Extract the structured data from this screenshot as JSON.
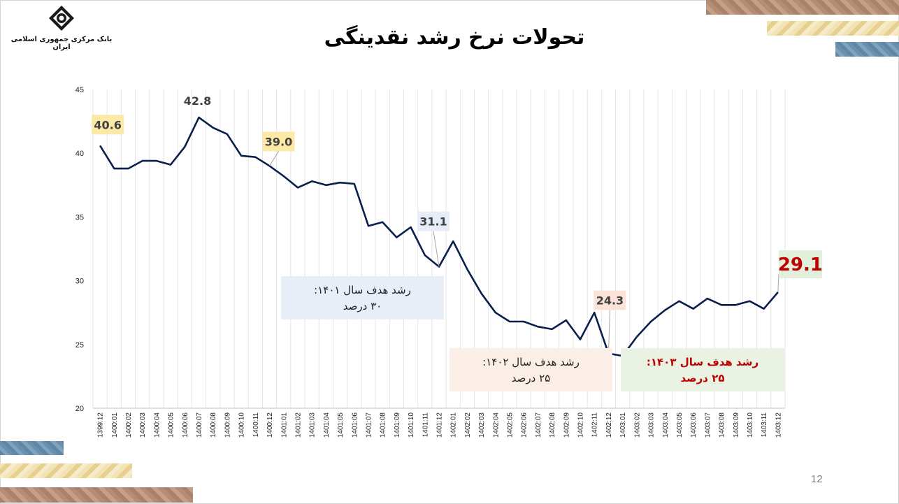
{
  "header": {
    "bank_name": "بانک مرکزی جمهوری اسلامی ایران",
    "title": "تحولات نرخ رشد نقدینگی",
    "logo_icon": "central-bank-logo-icon"
  },
  "footer": {
    "page_number": "12"
  },
  "chart_data": {
    "type": "line",
    "title": "تحولات نرخ رشد نقدینگی",
    "xlabel": "",
    "ylabel": "",
    "ylim": [
      20,
      45
    ],
    "yticks": [
      "20",
      "25",
      "30",
      "35",
      "40",
      "45"
    ],
    "grid": "vertical",
    "line_color": "#0b1f4d",
    "x": [
      "1399:12",
      "1400:01",
      "1400:02",
      "1400:03",
      "1400:04",
      "1400:05",
      "1400:06",
      "1400:07",
      "1400:08",
      "1400:09",
      "1400:10",
      "1400:11",
      "1400:12",
      "1401:01",
      "1401:02",
      "1401:03",
      "1401:04",
      "1401:05",
      "1401:06",
      "1401:07",
      "1401:08",
      "1401:09",
      "1401:10",
      "1401:11",
      "1401:12",
      "1402:01",
      "1402:02",
      "1402:03",
      "1402:04",
      "1402:05",
      "1402:06",
      "1402:07",
      "1402:08",
      "1402:09",
      "1402:10",
      "1402:11",
      "1402:12",
      "1403:01",
      "1403:02",
      "1403:03",
      "1403:04",
      "1403:05",
      "1403:06",
      "1403:07",
      "1403:08",
      "1403:09",
      "1403:10",
      "1403:11",
      "1403:12"
    ],
    "series": [
      {
        "values": [
          40.6,
          38.8,
          38.8,
          39.4,
          39.4,
          39.1,
          40.5,
          42.8,
          42.0,
          41.5,
          39.8,
          39.7,
          39.0,
          38.2,
          37.3,
          37.8,
          37.5,
          37.7,
          37.6,
          34.3,
          34.6,
          33.4,
          34.2,
          32.0,
          31.1,
          33.1,
          30.9,
          29.0,
          27.5,
          26.8,
          26.8,
          26.4,
          26.2,
          26.9,
          25.4,
          27.5,
          24.3,
          24.1,
          25.6,
          26.8,
          27.7,
          28.4,
          27.8,
          28.6,
          28.1,
          28.1,
          28.4,
          27.8,
          29.1
        ]
      }
    ],
    "annotations": [
      {
        "index": 0,
        "label": "40.6",
        "box": "#fde9a6"
      },
      {
        "index": 7,
        "label": "42.8",
        "box": ""
      },
      {
        "index": 12,
        "label": "39.0",
        "box": "#fde9a6"
      },
      {
        "index": 24,
        "label": "31.1",
        "box": "#e6edf7"
      },
      {
        "index": 36,
        "label": "24.3",
        "box": "#fbe4d7"
      },
      {
        "index": 48,
        "label": "29.1",
        "box": "#e2efda"
      }
    ],
    "targets": [
      {
        "line1": "رشد هدف سال ۱۴۰۱:",
        "line2": "۳۰ درصد",
        "bg": "#e8eef7",
        "color": "#222222"
      },
      {
        "line1": "رشد هدف سال ۱۴۰۲:",
        "line2": "۲۵ درصد",
        "bg": "#fbeee6",
        "color": "#222222"
      },
      {
        "line1": "رشد هدف سال ۱۴۰۳:",
        "line2": "۲۵ درصد",
        "bg": "#eaf3e3",
        "color": "#c00000"
      }
    ]
  }
}
